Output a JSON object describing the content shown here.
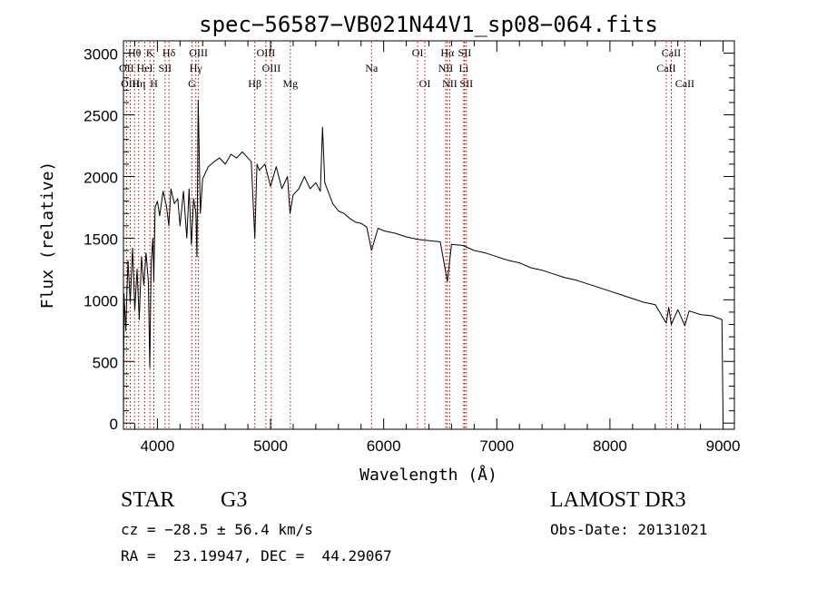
{
  "chart_data": {
    "type": "line",
    "title": "spec−56587−VB021N44V1_sp08−064.fits",
    "xlabel": "Wavelength (Å)",
    "ylabel": "Flux (relative)",
    "xlim": [
      3700,
      9100
    ],
    "ylim": [
      -50,
      3100
    ],
    "xticks": [
      4000,
      5000,
      6000,
      7000,
      8000,
      9000
    ],
    "yticks": [
      0,
      500,
      1000,
      1500,
      2000,
      2500,
      3000
    ],
    "series": [
      {
        "name": "flux",
        "x": [
          3700,
          3705,
          3720,
          3740,
          3760,
          3780,
          3800,
          3820,
          3840,
          3860,
          3880,
          3900,
          3920,
          3933,
          3945,
          3960,
          3968,
          3980,
          4000,
          4020,
          4050,
          4080,
          4101,
          4120,
          4150,
          4180,
          4200,
          4230,
          4260,
          4280,
          4300,
          4320,
          4340,
          4350,
          4360,
          4380,
          4400,
          4450,
          4500,
          4550,
          4600,
          4650,
          4700,
          4750,
          4800,
          4830,
          4861,
          4880,
          4900,
          4950,
          5000,
          5050,
          5100,
          5150,
          5172,
          5200,
          5250,
          5300,
          5350,
          5400,
          5440,
          5460,
          5480,
          5500,
          5550,
          5600,
          5650,
          5700,
          5750,
          5800,
          5850,
          5893,
          5950,
          6000,
          6100,
          6200,
          6300,
          6400,
          6500,
          6563,
          6600,
          6700,
          6800,
          6900,
          7000,
          7100,
          7200,
          7300,
          7400,
          7500,
          7600,
          7700,
          7800,
          7900,
          8000,
          8100,
          8200,
          8300,
          8400,
          8498,
          8520,
          8542,
          8600,
          8662,
          8700,
          8800,
          8900,
          8990,
          9000
        ],
        "y": [
          0,
          1050,
          750,
          1320,
          980,
          1420,
          920,
          1250,
          840,
          1350,
          1120,
          1380,
          1150,
          450,
          1300,
          1500,
          1150,
          1750,
          1800,
          1680,
          1880,
          1760,
          1600,
          1900,
          1780,
          1820,
          1600,
          1880,
          1500,
          1900,
          1450,
          1820,
          1700,
          1350,
          2620,
          1700,
          1980,
          2080,
          2120,
          2150,
          2100,
          2180,
          2150,
          2200,
          2150,
          2120,
          1500,
          2100,
          2050,
          2100,
          1920,
          2080,
          1900,
          2000,
          1700,
          1850,
          1900,
          2000,
          1900,
          1950,
          1880,
          2400,
          1950,
          1900,
          1780,
          1720,
          1700,
          1660,
          1630,
          1620,
          1590,
          1400,
          1580,
          1560,
          1540,
          1510,
          1490,
          1480,
          1470,
          1150,
          1450,
          1440,
          1400,
          1380,
          1350,
          1320,
          1300,
          1260,
          1240,
          1210,
          1180,
          1160,
          1130,
          1100,
          1070,
          1040,
          1010,
          980,
          960,
          810,
          940,
          800,
          920,
          790,
          910,
          880,
          870,
          840,
          30
        ]
      }
    ],
    "line_labels": [
      {
        "label": "Hθ",
        "wave": 3798,
        "row": 1
      },
      {
        "label": "OII",
        "wave": 3727,
        "row": 2
      },
      {
        "label": "OIII",
        "wave": 3760,
        "row": 3
      },
      {
        "label": "Hη",
        "wave": 3835,
        "row": 3
      },
      {
        "label": "HeI",
        "wave": 3889,
        "row": 2
      },
      {
        "label": "K",
        "wave": 3934,
        "row": 1
      },
      {
        "label": "SII",
        "wave": 4068,
        "row": 2
      },
      {
        "label": "H",
        "wave": 3969,
        "row": 3
      },
      {
        "label": "Hδ",
        "wave": 4102,
        "row": 1
      },
      {
        "label": "OIII",
        "wave": 4363,
        "row": 1
      },
      {
        "label": "Hγ",
        "wave": 4340,
        "row": 2
      },
      {
        "label": "G",
        "wave": 4305,
        "row": 3
      },
      {
        "label": "OIII",
        "wave": 4959,
        "row": 1
      },
      {
        "label": "OIII",
        "wave": 5007,
        "row": 2
      },
      {
        "label": "Hβ",
        "wave": 4861,
        "row": 3
      },
      {
        "label": "Mg",
        "wave": 5175,
        "row": 3
      },
      {
        "label": "Na",
        "wave": 5893,
        "row": 2
      },
      {
        "label": "OI",
        "wave": 6300,
        "row": 1
      },
      {
        "label": "OI",
        "wave": 6364,
        "row": 3
      },
      {
        "label": "Hα",
        "wave": 6563,
        "row": 1
      },
      {
        "label": "SII",
        "wave": 6716,
        "row": 1
      },
      {
        "label": "NII",
        "wave": 6548,
        "row": 2
      },
      {
        "label": "Li",
        "wave": 6708,
        "row": 2
      },
      {
        "label": "NII",
        "wave": 6584,
        "row": 3
      },
      {
        "label": "SII",
        "wave": 6731,
        "row": 3
      },
      {
        "label": "CaII",
        "wave": 8542,
        "row": 1
      },
      {
        "label": "CaII",
        "wave": 8498,
        "row": 2
      },
      {
        "label": "CaII",
        "wave": 8662,
        "row": 3
      }
    ],
    "line_markers": [
      3727,
      3760,
      3798,
      3835,
      3889,
      3934,
      3969,
      4068,
      4102,
      4305,
      4340,
      4363,
      4861,
      4959,
      5007,
      5175,
      5893,
      6300,
      6364,
      6548,
      6563,
      6584,
      6708,
      6716,
      6731,
      8498,
      8542,
      8662
    ],
    "colors": {
      "line": "#000000",
      "marker": "#c00000",
      "axis": "#000000"
    }
  },
  "info": {
    "class_label": "STAR",
    "subclass": "G3",
    "survey": "LAMOST DR3",
    "cz": "cz = −28.5 ± 56.4 km/s",
    "obs_date": "Obs-Date: 20131021",
    "radec": "RA =  23.19947, DEC =  44.29067"
  }
}
